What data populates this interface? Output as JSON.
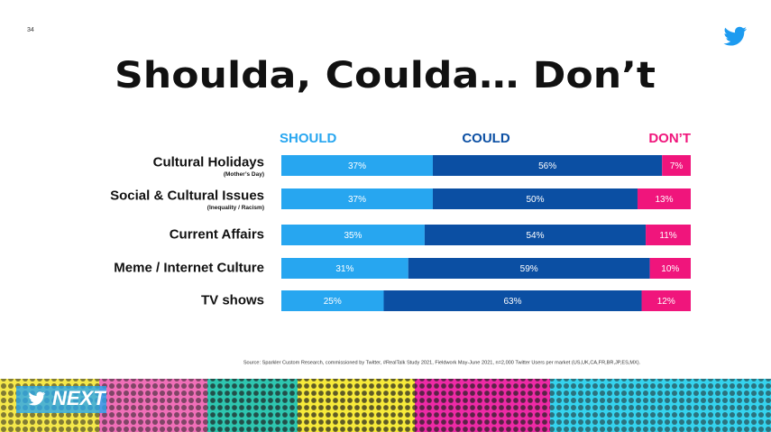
{
  "page_number": "34",
  "footer_logo": "NEXT",
  "chart_data": {
    "type": "stacked-bar-horizontal",
    "title": "Shoulda, Coulda… Don’t",
    "categories": [
      "Cultural Holidays",
      "Social & Cultural Issues",
      "Current Affairs",
      "Meme / Internet Culture",
      "TV shows"
    ],
    "sublabels": [
      "(Mother’s Day)",
      "(Inequality / Racism)",
      null,
      null,
      null
    ],
    "xlim": [
      0,
      100
    ],
    "series": [
      {
        "name": "SHOULD",
        "color": "#27a6f0",
        "values": [
          37,
          37,
          35,
          31,
          25
        ],
        "value_labels": [
          "37%",
          "37%",
          "35%",
          "31%",
          "25%"
        ]
      },
      {
        "name": "COULD",
        "color": "#0b4fa3",
        "values": [
          56,
          50,
          54,
          59,
          63
        ],
        "value_labels": [
          "56%",
          "50%",
          "54%",
          "59%",
          "63%"
        ]
      },
      {
        "name": "DON’T",
        "color": "#f0157c",
        "values": [
          7,
          13,
          11,
          10,
          12
        ],
        "value_labels": [
          "7%",
          "13%",
          "11%",
          "10%",
          "12%"
        ]
      }
    ],
    "source": "Source: Sparkler Custom Research, commissioned by Twitter, #RealTalk Study 2021, Fieldwork May-June 2021, n=2,000 Twitter Users per market (US,UK,CA,FR,BR,JP,ES,MX)."
  }
}
